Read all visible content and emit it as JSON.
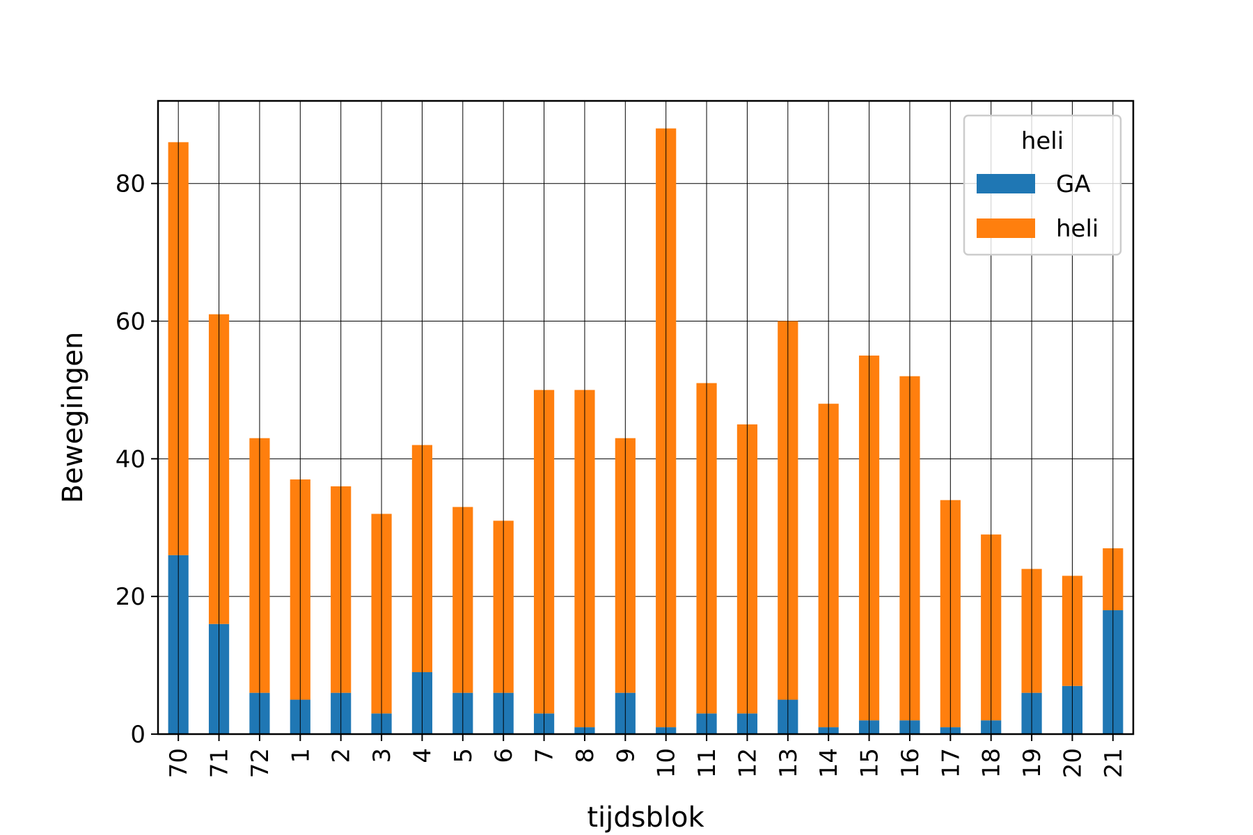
{
  "chart_data": {
    "type": "bar",
    "stacked": true,
    "categories": [
      "70",
      "71",
      "72",
      "1",
      "2",
      "3",
      "4",
      "5",
      "6",
      "7",
      "8",
      "9",
      "10",
      "11",
      "12",
      "13",
      "14",
      "15",
      "16",
      "17",
      "18",
      "19",
      "20",
      "21"
    ],
    "series": [
      {
        "name": "GA",
        "color": "#1f77b4",
        "values": [
          26,
          16,
          6,
          5,
          6,
          3,
          9,
          6,
          6,
          3,
          1,
          6,
          1,
          3,
          3,
          5,
          1,
          2,
          2,
          1,
          2,
          6,
          7,
          18
        ]
      },
      {
        "name": "heli",
        "color": "#ff7f0e",
        "values": [
          60,
          45,
          37,
          32,
          30,
          29,
          33,
          27,
          25,
          47,
          49,
          37,
          87,
          48,
          42,
          55,
          47,
          53,
          50,
          33,
          27,
          18,
          16,
          9
        ]
      }
    ],
    "xlabel": "tijdsblok",
    "ylabel": "Bewegingen",
    "ylim": [
      0,
      92
    ],
    "yticks": [
      0,
      20,
      40,
      60,
      80
    ],
    "grid": true,
    "legend": {
      "title": "heli",
      "position": "top-right"
    }
  }
}
